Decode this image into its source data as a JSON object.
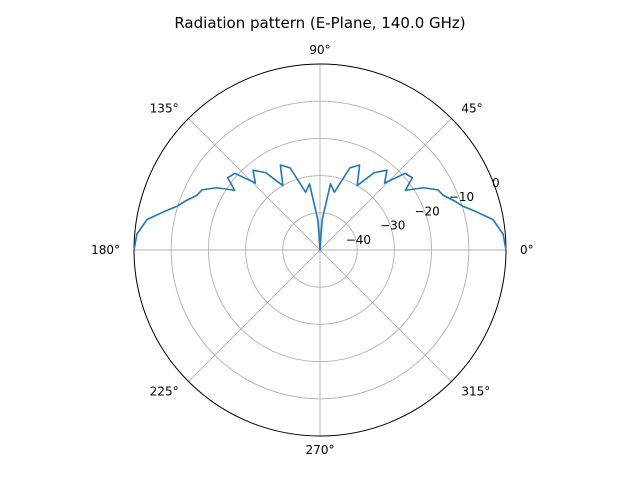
{
  "chart_data": {
    "type": "polar-line",
    "title": "Radiation pattern (E-Plane, 140.0 GHz)",
    "angular_unit": "degrees",
    "theta_ticks": [
      "0°",
      "45°",
      "90°",
      "135°",
      "180°",
      "225°",
      "270°",
      "315°"
    ],
    "theta_tick_values": [
      0,
      45,
      90,
      135,
      180,
      225,
      270,
      315
    ],
    "r_ticks": [
      "0",
      "−10",
      "−20",
      "−30",
      "−40"
    ],
    "r_tick_values": [
      0,
      -10,
      -20,
      -30,
      -40
    ],
    "rlim": [
      -50,
      0
    ],
    "grid": true,
    "series": [
      {
        "color": "#1f77b4",
        "points": [
          [
            0,
            0
          ],
          [
            5,
            -0.6
          ],
          [
            10,
            -2.8
          ],
          [
            14,
            -7
          ],
          [
            17,
            -9.8
          ],
          [
            20,
            -11.5
          ],
          [
            24,
            -13.8
          ],
          [
            27,
            -14.4
          ],
          [
            31,
            -17.5
          ],
          [
            35,
            -22
          ],
          [
            38,
            -18.5
          ],
          [
            42,
            -19.2
          ],
          [
            46,
            -25
          ],
          [
            50,
            -22
          ],
          [
            55,
            -24.6
          ],
          [
            60,
            -30
          ],
          [
            65,
            -24.8
          ],
          [
            70,
            -26.5
          ],
          [
            76,
            -34
          ],
          [
            81,
            -32
          ],
          [
            86,
            -42
          ],
          [
            90,
            -50
          ],
          [
            94,
            -42
          ],
          [
            99,
            -32
          ],
          [
            104,
            -34
          ],
          [
            110,
            -26.5
          ],
          [
            115,
            -24.8
          ],
          [
            120,
            -30
          ],
          [
            125,
            -24.6
          ],
          [
            130,
            -22
          ],
          [
            134,
            -25
          ],
          [
            138,
            -19.2
          ],
          [
            142,
            -18.5
          ],
          [
            145,
            -22
          ],
          [
            149,
            -17.5
          ],
          [
            153,
            -14.4
          ],
          [
            156,
            -13.8
          ],
          [
            160,
            -11.5
          ],
          [
            163,
            -9.8
          ],
          [
            166,
            -7
          ],
          [
            170,
            -2.8
          ],
          [
            175,
            -0.6
          ],
          [
            180,
            0
          ]
        ]
      }
    ]
  }
}
